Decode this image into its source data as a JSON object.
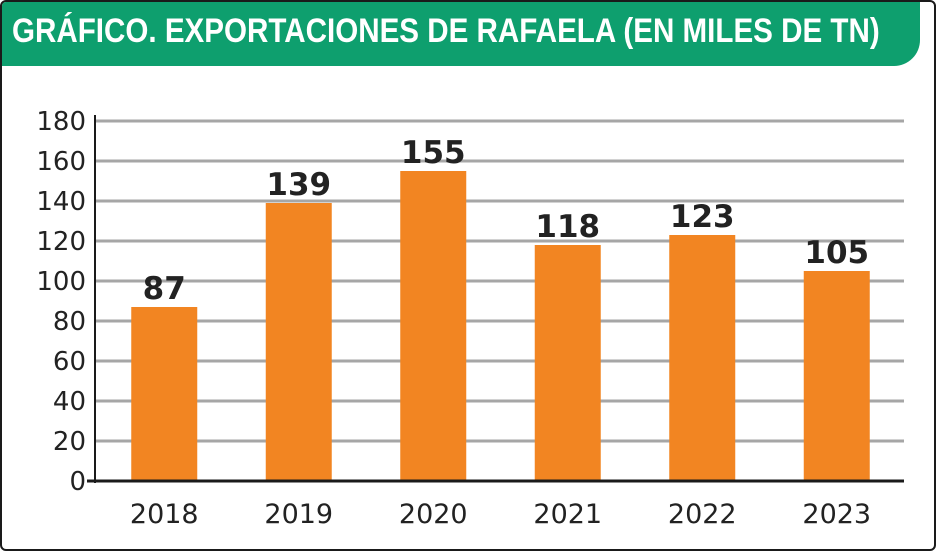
{
  "header": {
    "title": "GRÁFICO. EXPORTACIONES DE RAFAELA (EN MILES DE TN)"
  },
  "colors": {
    "accent": "#0e9f6e",
    "bar": "#f28522",
    "grid": "#a6a6a6",
    "text": "#222222"
  },
  "chart_data": {
    "type": "bar",
    "title": "GRÁFICO. EXPORTACIONES DE RAFAELA (EN MILES DE TN)",
    "xlabel": "",
    "ylabel": "",
    "categories": [
      "2018",
      "2019",
      "2020",
      "2021",
      "2022",
      "2023"
    ],
    "values": [
      87,
      139,
      155,
      118,
      123,
      105
    ],
    "data_labels": [
      "87",
      "139",
      "155",
      "118",
      "123",
      "105"
    ],
    "ylim": [
      0,
      180
    ],
    "yticks": [
      0,
      20,
      40,
      60,
      80,
      100,
      120,
      140,
      160,
      180
    ],
    "grid": true,
    "legend": "none"
  }
}
